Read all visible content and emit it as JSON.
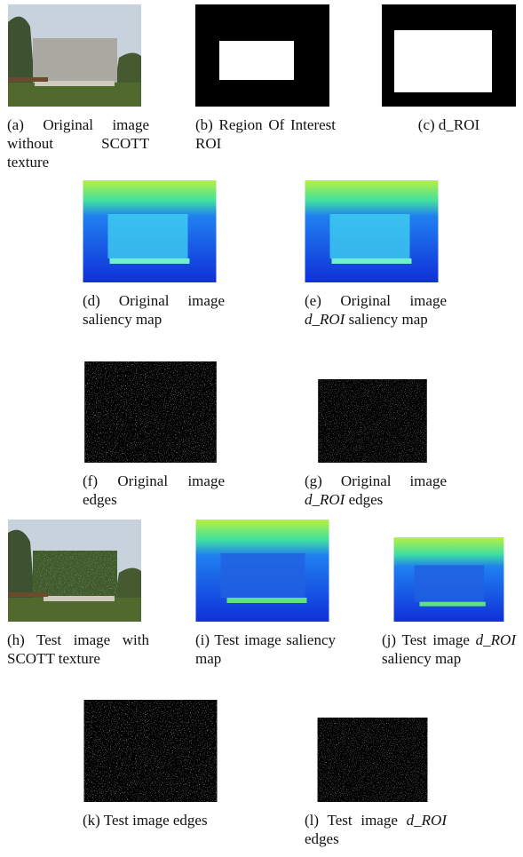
{
  "subfigures": [
    {
      "caption": [
        {
          "text": "(a) Original image without SCOTT texture"
        }
      ]
    },
    {
      "caption": [
        {
          "text": "(b) Region Of Interest ROI"
        }
      ]
    },
    {
      "caption": [
        {
          "text": "(c) d_ROI"
        }
      ]
    },
    {
      "caption": [
        {
          "text": "(d) Original image saliency map"
        }
      ]
    },
    {
      "caption": [
        {
          "text": "(e) Original image "
        },
        {
          "text": "d_ROI",
          "italic": true
        },
        {
          "text": " saliency map"
        }
      ]
    },
    {
      "caption": [
        {
          "text": "(f) Original image edges"
        }
      ]
    },
    {
      "caption": [
        {
          "text": "(g) Original image "
        },
        {
          "text": "d_ROI",
          "italic": true
        },
        {
          "text": " edges"
        }
      ]
    },
    {
      "caption": [
        {
          "text": "(h) Test image with SCOTT texture"
        }
      ]
    },
    {
      "caption": [
        {
          "text": "(i) Test image saliency map"
        }
      ]
    },
    {
      "caption": [
        {
          "text": "(j) Test image "
        },
        {
          "text": "d_ROI",
          "italic": true
        },
        {
          "text": " saliency map"
        }
      ]
    },
    {
      "caption": [
        {
          "text": "(k) Test image edges"
        }
      ]
    },
    {
      "caption": [
        {
          "text": "(l) Test image "
        },
        {
          "text": "d_ROI",
          "italic": true
        },
        {
          "text": " edges"
        }
      ]
    }
  ]
}
